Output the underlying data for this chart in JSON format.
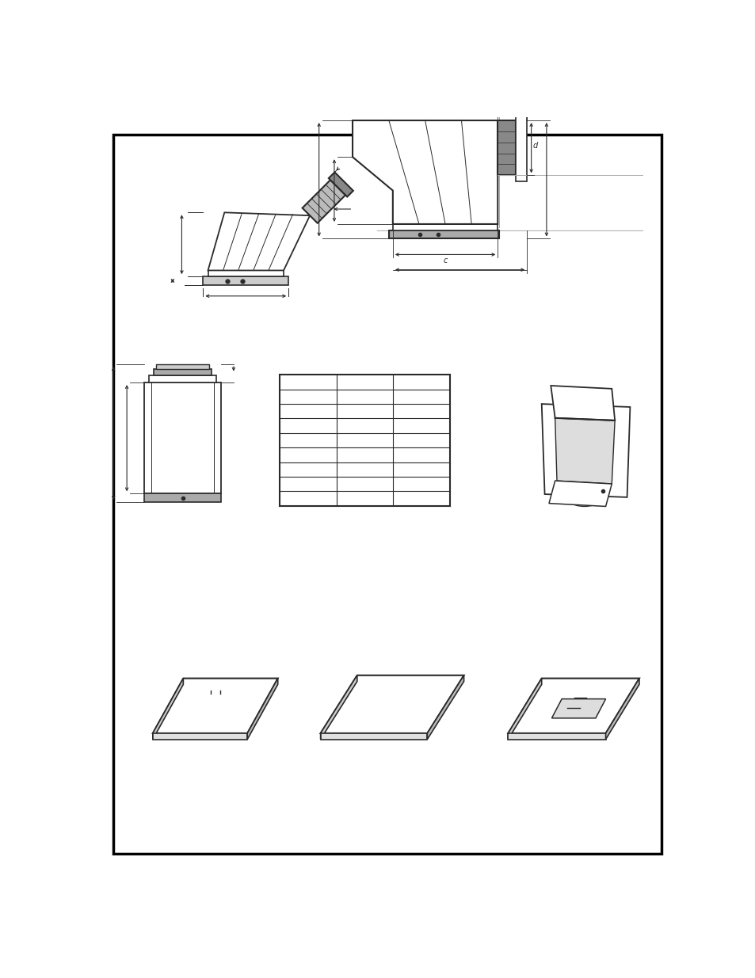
{
  "bg_color": "#ffffff",
  "line_color": "#2a2a2a",
  "dim_color": "#2a2a2a",
  "gray_fill": "#d8d8d8"
}
